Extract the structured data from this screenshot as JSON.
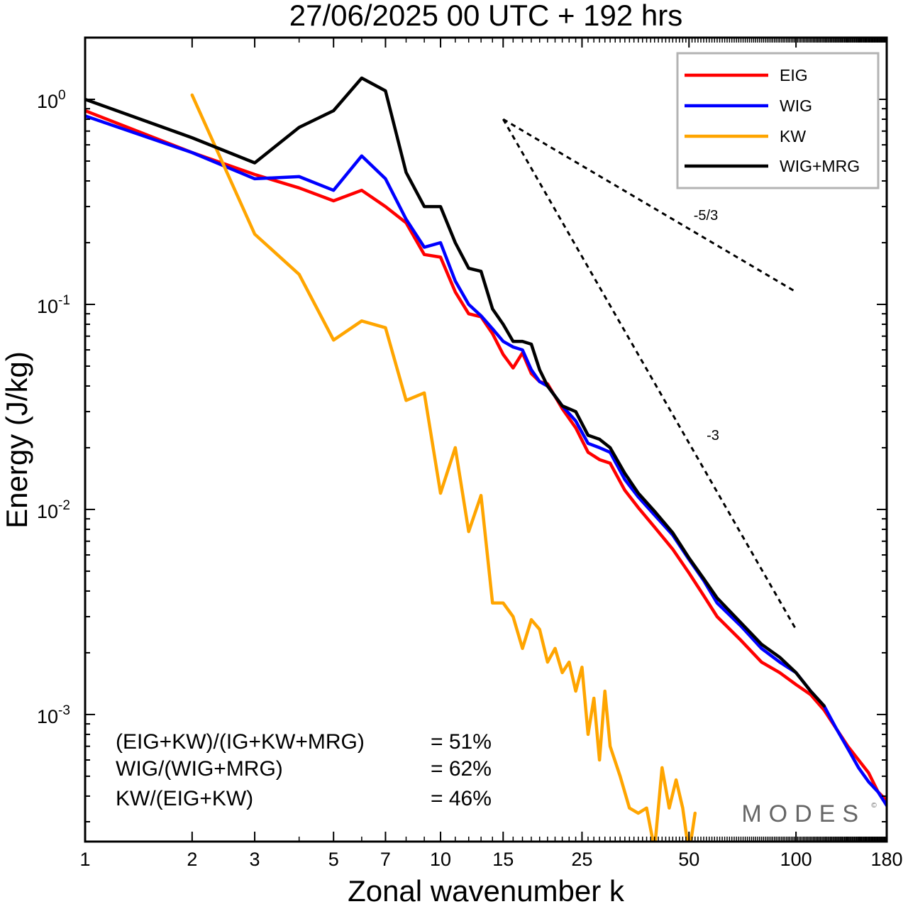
{
  "title": "27/06/2025  00 UTC  + 192 hrs",
  "chart_data": {
    "type": "line",
    "xscale": "log",
    "yscale": "log",
    "xlabel": "Zonal wavenumber k",
    "ylabel": "Energy (J/kg)",
    "xlim": [
      1,
      180
    ],
    "ylim": [
      0.00024,
      2.0
    ],
    "x_ticks": [
      1,
      2,
      3,
      5,
      7,
      10,
      15,
      25,
      50,
      100,
      180
    ],
    "x_tick_labels": [
      "1",
      "2",
      "3",
      "5",
      "7",
      "10",
      "15",
      "25",
      "50",
      "100",
      "180"
    ],
    "y_ticks": [
      1,
      0.1,
      0.01,
      0.001
    ],
    "y_tick_labels": [
      {
        "base": "10",
        "exp": "0"
      },
      {
        "base": "10",
        "exp": "-1"
      },
      {
        "base": "10",
        "exp": "-2"
      },
      {
        "base": "10",
        "exp": "-3"
      }
    ],
    "grid": false,
    "legend_position": "top-right",
    "series": [
      {
        "name": "EIG",
        "color": "#ff0000",
        "x": [
          1,
          2,
          3,
          4,
          5,
          6,
          7,
          8,
          9,
          10,
          11,
          12,
          13,
          14,
          15,
          16,
          17,
          18,
          19,
          20,
          22,
          24,
          26,
          28,
          30,
          33,
          36,
          40,
          45,
          50,
          55,
          60,
          70,
          80,
          90,
          100,
          110,
          120,
          130,
          140,
          150,
          160,
          170,
          180
        ],
        "y": [
          0.88,
          0.55,
          0.43,
          0.37,
          0.32,
          0.36,
          0.3,
          0.25,
          0.175,
          0.17,
          0.115,
          0.09,
          0.087,
          0.072,
          0.057,
          0.049,
          0.058,
          0.046,
          0.042,
          0.041,
          0.031,
          0.025,
          0.019,
          0.0175,
          0.0168,
          0.0124,
          0.0102,
          0.0082,
          0.0064,
          0.0049,
          0.0038,
          0.003,
          0.0023,
          0.0018,
          0.0016,
          0.0014,
          0.00125,
          0.00105,
          0.00085,
          0.0007,
          0.0006,
          0.00052,
          0.00042,
          0.00038
        ]
      },
      {
        "name": "WIG",
        "color": "#0000ff",
        "x": [
          1,
          2,
          3,
          4,
          5,
          6,
          7,
          8,
          9,
          10,
          11,
          12,
          13,
          14,
          15,
          16,
          17,
          18,
          19,
          20,
          22,
          24,
          26,
          28,
          30,
          33,
          36,
          40,
          45,
          50,
          55,
          60,
          70,
          80,
          90,
          100,
          110,
          120,
          130,
          140,
          150,
          160,
          170,
          180
        ],
        "y": [
          0.83,
          0.55,
          0.41,
          0.42,
          0.36,
          0.53,
          0.41,
          0.26,
          0.19,
          0.2,
          0.13,
          0.1,
          0.088,
          0.076,
          0.066,
          0.062,
          0.06,
          0.048,
          0.042,
          0.04,
          0.032,
          0.027,
          0.021,
          0.02,
          0.019,
          0.014,
          0.0115,
          0.0094,
          0.0075,
          0.0057,
          0.0045,
          0.0035,
          0.0027,
          0.0021,
          0.0018,
          0.0016,
          0.0013,
          0.0011,
          0.00085,
          0.00068,
          0.00055,
          0.00047,
          0.00042,
          0.00036
        ]
      },
      {
        "name": "KW",
        "color": "#ffa500",
        "x": [
          2,
          3,
          4,
          5,
          6,
          7,
          8,
          9,
          10,
          11,
          12,
          13,
          14,
          15,
          16,
          17,
          18,
          19,
          20,
          21,
          22,
          23,
          24,
          25,
          26,
          27,
          28,
          29,
          30,
          32,
          34,
          36,
          38,
          40,
          42,
          44,
          46,
          48,
          50,
          52
        ],
        "y": [
          1.05,
          0.22,
          0.14,
          0.067,
          0.083,
          0.077,
          0.034,
          0.037,
          0.012,
          0.02,
          0.0078,
          0.0117,
          0.0035,
          0.0035,
          0.003,
          0.0021,
          0.0029,
          0.0026,
          0.0018,
          0.0021,
          0.0016,
          0.0018,
          0.0013,
          0.0017,
          0.0008,
          0.0012,
          0.0006,
          0.0013,
          0.0007,
          0.0005,
          0.00035,
          0.00033,
          0.00035,
          0.00022,
          0.00055,
          0.00035,
          0.00048,
          0.00035,
          0.00021,
          0.00033
        ]
      },
      {
        "name": "WIG+MRG",
        "color": "#000000",
        "x": [
          1,
          2,
          3,
          4,
          5,
          6,
          7,
          8,
          9,
          10,
          11,
          12,
          13,
          14,
          15,
          16,
          17,
          18,
          19,
          20,
          22,
          24,
          26,
          28,
          30,
          33,
          36,
          40,
          45,
          50,
          55,
          60,
          70,
          80,
          90,
          100,
          110,
          120
        ],
        "y": [
          1.0,
          0.65,
          0.49,
          0.73,
          0.88,
          1.27,
          1.1,
          0.44,
          0.3,
          0.3,
          0.2,
          0.15,
          0.145,
          0.095,
          0.08,
          0.066,
          0.066,
          0.064,
          0.048,
          0.04,
          0.032,
          0.03,
          0.023,
          0.022,
          0.02,
          0.015,
          0.012,
          0.0098,
          0.0077,
          0.0058,
          0.0046,
          0.0037,
          0.0028,
          0.0022,
          0.0019,
          0.0016,
          0.0013,
          0.0011
        ]
      }
    ],
    "reference_slopes": [
      {
        "label": "-5/3",
        "x": [
          15,
          100
        ],
        "y": [
          0.8,
          0.115
        ]
      },
      {
        "label": "-3",
        "x": [
          15,
          100
        ],
        "y": [
          0.8,
          0.0026
        ]
      }
    ]
  },
  "stats": [
    {
      "label": "(EIG+KW)/(IG+KW+MRG)",
      "value": "= 51%"
    },
    {
      "label": "WIG/(WIG+MRG)",
      "value": "= 62%"
    },
    {
      "label": "KW/(EIG+KW)",
      "value": "= 46%"
    }
  ],
  "watermark": "MODES",
  "watermark_mark": "©"
}
